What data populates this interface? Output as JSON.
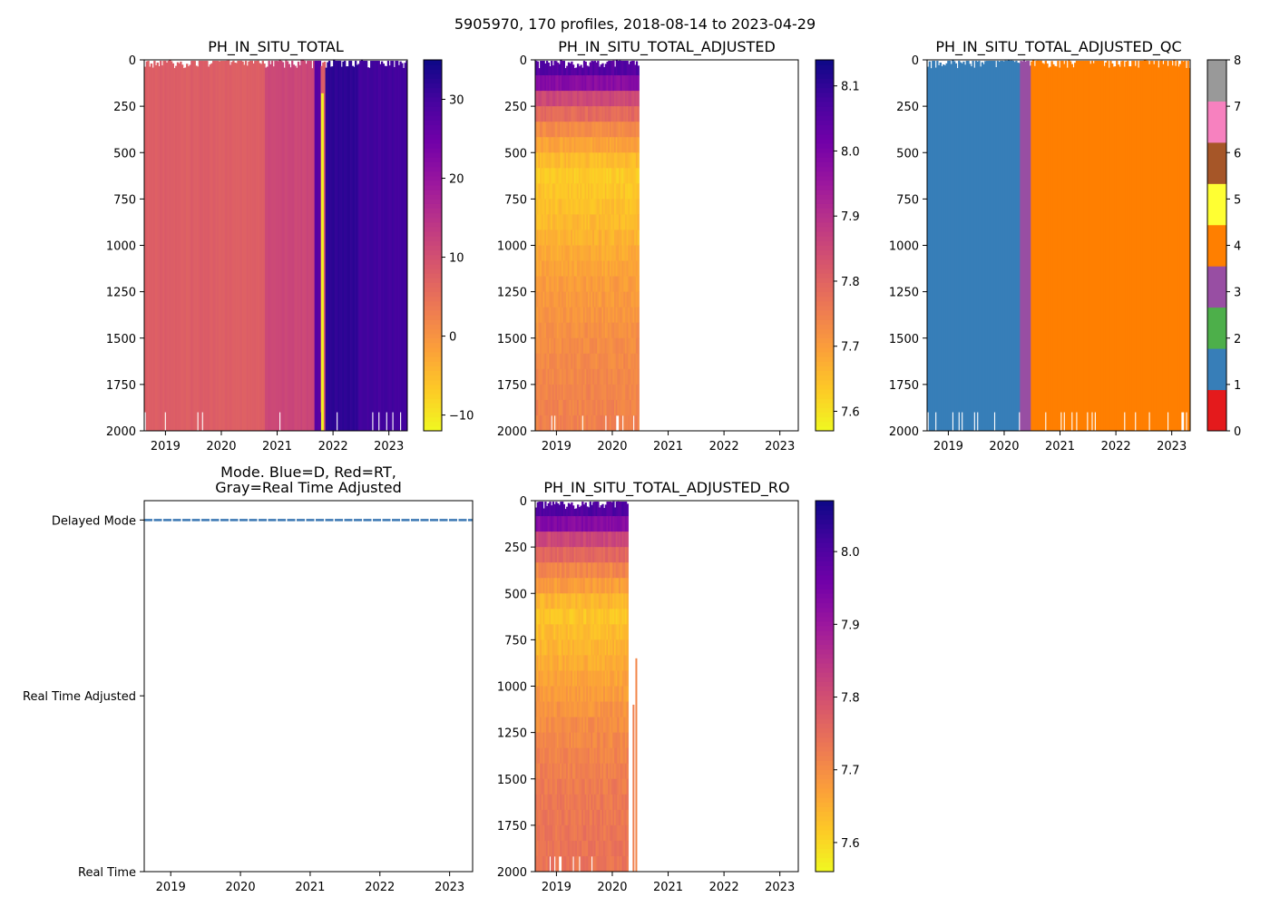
{
  "suptitle": "5905970, 170 profiles, 2018-08-14 to 2023-04-29",
  "colors": {
    "delayed_line": "#3b78b4",
    "plasma": [
      "#f0f921",
      "#fdca26",
      "#fb9f3a",
      "#ed7953",
      "#d8576b",
      "#bd3786",
      "#9c179e",
      "#7201a8",
      "#46039f",
      "#0d0887"
    ],
    "qc_colors": [
      "#e41a1c",
      "#377eb8",
      "#4daf4a",
      "#984ea3",
      "#ff7f00",
      "#ffff33",
      "#a65628",
      "#f781bf",
      "#999999"
    ]
  },
  "chart_data": [
    {
      "id": "ph_total",
      "type": "heatmap",
      "title": "PH_IN_SITU_TOTAL",
      "colormap": "plasma_r",
      "x_ticks": [
        "2019",
        "2020",
        "2021",
        "2022",
        "2023"
      ],
      "x_range": [
        2018.62,
        2023.33
      ],
      "y_ticks": [
        "0",
        "250",
        "500",
        "750",
        "1000",
        "1250",
        "1500",
        "1750",
        "2000"
      ],
      "y_range": [
        0,
        2000
      ],
      "y_inverted": true,
      "cbar_ticks": [
        "−10",
        "0",
        "10",
        "20",
        "30"
      ],
      "cbar_values": [
        -10,
        0,
        10,
        20,
        30
      ],
      "cbar_range": [
        -12,
        35
      ],
      "segments": [
        {
          "x0": 2018.62,
          "x1": 2020.57,
          "value": 7.8
        },
        {
          "x0": 2020.57,
          "x1": 2020.77,
          "value": 8.0
        },
        {
          "x0": 2020.77,
          "x1": 2021.68,
          "value": 11.5
        },
        {
          "x0": 2021.68,
          "x1": 2021.77,
          "value": 28
        },
        {
          "x0": 2021.77,
          "x1": 2021.85,
          "value": 8.0
        },
        {
          "x0": 2021.85,
          "x1": 2022.45,
          "value": 32
        },
        {
          "x0": 2022.45,
          "x1": 2023.33,
          "value": 30
        }
      ],
      "anomalies": [
        {
          "x": 2021.81,
          "depth0": 180,
          "depth1": 2000,
          "value": -11
        }
      ]
    },
    {
      "id": "ph_adjusted",
      "type": "heatmap",
      "title": "PH_IN_SITU_TOTAL_ADJUSTED",
      "colormap": "plasma_r",
      "x_ticks": [
        "2019",
        "2020",
        "2021",
        "2022",
        "2023"
      ],
      "x_range": [
        2018.62,
        2023.33
      ],
      "y_ticks": [
        "0",
        "250",
        "500",
        "750",
        "1000",
        "1250",
        "1500",
        "1750",
        "2000"
      ],
      "y_range": [
        0,
        2000
      ],
      "y_inverted": true,
      "cbar_ticks": [
        "7.6",
        "7.7",
        "7.8",
        "7.9",
        "8.0",
        "8.1"
      ],
      "cbar_values": [
        7.6,
        7.7,
        7.8,
        7.9,
        8.0,
        8.1
      ],
      "cbar_range": [
        7.57,
        8.14
      ],
      "data_x_end": 2020.49,
      "depth_profile": [
        {
          "depth": 0,
          "value": 8.08
        },
        {
          "depth": 100,
          "value": 8.02
        },
        {
          "depth": 200,
          "value": 7.86
        },
        {
          "depth": 350,
          "value": 7.74
        },
        {
          "depth": 600,
          "value": 7.63
        },
        {
          "depth": 900,
          "value": 7.66
        },
        {
          "depth": 1200,
          "value": 7.7
        },
        {
          "depth": 1600,
          "value": 7.73
        },
        {
          "depth": 2000,
          "value": 7.75
        }
      ]
    },
    {
      "id": "ph_qc",
      "type": "heatmap",
      "title": "PH_IN_SITU_TOTAL_ADJUSTED_QC",
      "colormap": "qc",
      "x_ticks": [
        "2019",
        "2020",
        "2021",
        "2022",
        "2023"
      ],
      "x_range": [
        2018.62,
        2023.33
      ],
      "y_ticks": [
        "0",
        "250",
        "500",
        "750",
        "1000",
        "1250",
        "1500",
        "1750",
        "2000"
      ],
      "y_range": [
        0,
        2000
      ],
      "y_inverted": true,
      "cbar_ticks": [
        "0",
        "1",
        "2",
        "3",
        "4",
        "5",
        "6",
        "7",
        "8"
      ],
      "cbar_values": [
        0,
        1,
        2,
        3,
        4,
        5,
        6,
        7,
        8
      ],
      "cbar_range": [
        0,
        8
      ],
      "segments": [
        {
          "x0": 2018.62,
          "x1": 2020.27,
          "value": 1
        },
        {
          "x0": 2020.27,
          "x1": 2020.49,
          "value": 3
        },
        {
          "x0": 2020.49,
          "x1": 2023.33,
          "value": 4
        }
      ]
    },
    {
      "id": "mode",
      "type": "line",
      "title_lines": [
        "Mode. Blue=D, Red=RT,",
        "Gray=Real Time Adjusted"
      ],
      "x_ticks": [
        "2019",
        "2020",
        "2021",
        "2022",
        "2023"
      ],
      "x_range": [
        2018.62,
        2023.33
      ],
      "y_categories": [
        "Delayed Mode",
        "Real Time Adjusted",
        "Real Time"
      ],
      "y_values": [
        1,
        0.5,
        0
      ],
      "y_range": [
        -0.0,
        1.055
      ],
      "series": [
        {
          "name": "Delayed Mode",
          "x": [
            2018.62,
            2023.33
          ],
          "y": [
            1,
            1
          ]
        }
      ]
    },
    {
      "id": "ph_ro",
      "type": "heatmap",
      "title": "PH_IN_SITU_TOTAL_ADJUSTED_RO",
      "colormap": "plasma_r",
      "x_ticks": [
        "2019",
        "2020",
        "2021",
        "2022",
        "2023"
      ],
      "x_range": [
        2018.62,
        2023.33
      ],
      "y_ticks": [
        "0",
        "250",
        "500",
        "750",
        "1000",
        "1250",
        "1500",
        "1750",
        "2000"
      ],
      "y_range": [
        0,
        2000
      ],
      "y_inverted": true,
      "cbar_ticks": [
        "7.6",
        "7.7",
        "7.8",
        "7.9",
        "8.0"
      ],
      "cbar_values": [
        7.6,
        7.7,
        7.8,
        7.9,
        8.0
      ],
      "cbar_range": [
        7.56,
        8.07
      ],
      "data_x_end": 2020.27,
      "depth_profile": [
        {
          "depth": 0,
          "value": 8.02
        },
        {
          "depth": 100,
          "value": 7.97
        },
        {
          "depth": 200,
          "value": 7.82
        },
        {
          "depth": 350,
          "value": 7.72
        },
        {
          "depth": 600,
          "value": 7.62
        },
        {
          "depth": 900,
          "value": 7.66
        },
        {
          "depth": 1200,
          "value": 7.7
        },
        {
          "depth": 1600,
          "value": 7.73
        },
        {
          "depth": 2000,
          "value": 7.74
        }
      ],
      "isolated_profiles": [
        {
          "x": 2020.38,
          "depth0": 1100,
          "depth1": 2000,
          "value": 7.72
        },
        {
          "x": 2020.43,
          "depth0": 850,
          "depth1": 2000,
          "value": 7.71
        }
      ]
    }
  ]
}
